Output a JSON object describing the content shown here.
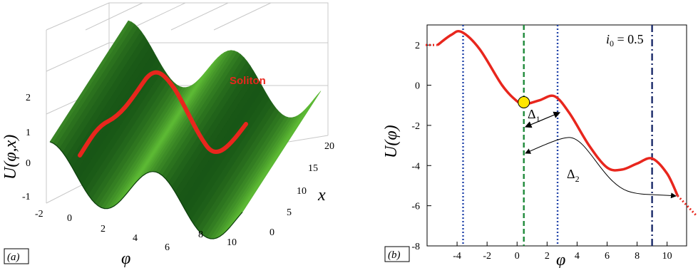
{
  "chart_data": [
    {
      "type": "surface",
      "panel_label": "(a)",
      "xlabel": "φ",
      "ylabel": "x",
      "zlabel": "U(φ,x)",
      "annotation": "Soliton",
      "x_ticks": [
        "0",
        "2",
        "4",
        "6",
        "8",
        "10"
      ],
      "y_ticks": [
        "0",
        "5",
        "10",
        "15",
        "20"
      ],
      "z_ticks": [
        "-2",
        "-1",
        "0",
        "1",
        "2"
      ],
      "xlim": [
        -1,
        11
      ],
      "ylim": [
        0,
        20
      ],
      "zlim": [
        -2,
        2
      ],
      "surface_color": "#2e9a2e",
      "soliton_color": "#e8261d"
    },
    {
      "type": "line",
      "panel_label": "(b)",
      "annotation": "i0 = 0.5",
      "xlabel": "φ",
      "ylabel": "U(φ)",
      "x_ticks": [
        "-4",
        "-2",
        "0",
        "2",
        "4",
        "6",
        "8",
        "10"
      ],
      "y_ticks": [
        "2",
        "0",
        "-2",
        "-4",
        "-6",
        "-8"
      ],
      "xlim": [
        -6,
        11.3
      ],
      "ylim": [
        -8,
        3
      ],
      "series": [
        {
          "color": "#e8261d",
          "x": [
            -5.3,
            -4.4,
            -3.7,
            -2.5,
            -1,
            0,
            0.5,
            1.5,
            2.5,
            3.5,
            4.8,
            6,
            7,
            8,
            9,
            10,
            10.7
          ],
          "y": [
            2.0,
            2.5,
            2.65,
            1.8,
            0.0,
            -0.8,
            -0.95,
            -0.75,
            -0.55,
            -1.4,
            -3.0,
            -4.1,
            -4.2,
            -3.9,
            -3.65,
            -4.4,
            -5.5
          ]
        }
      ],
      "vlines": [
        {
          "x": -3.6,
          "style": "dotted",
          "color": "#2244aa"
        },
        {
          "x": 0.45,
          "style": "dashed",
          "color": "#1f8a3a"
        },
        {
          "x": 2.7,
          "style": "dotted",
          "color": "#2244aa"
        },
        {
          "x": 9.0,
          "style": "dash-dot",
          "color": "#1a2a6a"
        }
      ],
      "ball": {
        "x": 0.45,
        "y": -0.85,
        "color": "#ffe600"
      },
      "delta1_label": "Δ1",
      "delta2_label": "Δ2"
    }
  ],
  "labels": {
    "soliton": "Soliton",
    "panel_a": "(a)",
    "panel_b": "(b)",
    "i0": "i0 = 0.5",
    "delta1": "Δ",
    "delta1_sub": "1",
    "delta2": "Δ",
    "delta2_sub": "2"
  }
}
